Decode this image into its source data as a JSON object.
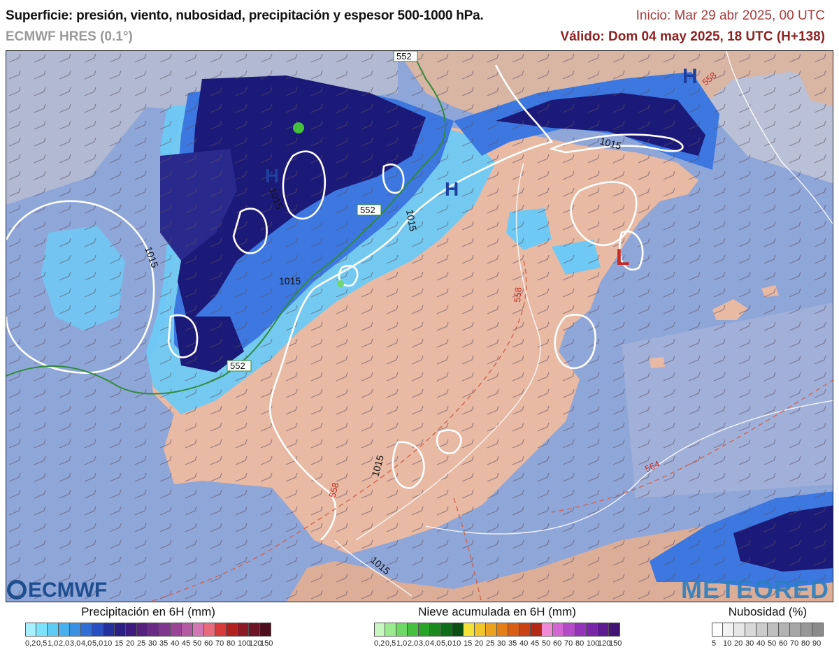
{
  "header": {
    "title": "Superficie: presión, viento, nubosidad, precipitación y espesor 500-1000 hPa.",
    "model": "ECMWF HRES (0.1°)",
    "init": "Inicio: Mar 29 abr 2025, 00 UTC",
    "valid": "Válido: Dom 04 may 2025, 18 UTC (H+138)"
  },
  "map": {
    "pressure_centers": [
      {
        "letter": "H",
        "kind": "high"
      },
      {
        "letter": "H",
        "kind": "high"
      },
      {
        "letter": "H",
        "kind": "high"
      },
      {
        "letter": "L",
        "kind": "low"
      }
    ],
    "isobar_labels": [
      "1015",
      "1015",
      "1015",
      "1015",
      "1015",
      "1015",
      "1015"
    ],
    "thickness_labels": [
      "552",
      "552",
      "552",
      "558",
      "558",
      "564",
      "558"
    ],
    "colors": {
      "sea": "#8fa6d9",
      "land": "#e8b9a3",
      "precip_dark": "#1c1a78",
      "precip_mid": "#3c78e0",
      "precip_light": "#6ec9f5",
      "isobar": "#ffffff",
      "thickness_552": "#2f8c3a",
      "thickness_dashed": "#d0604a"
    }
  },
  "watermarks": {
    "left": "ECMWF",
    "right": "METEORED"
  },
  "legends": {
    "precip": {
      "title": "Precipitación en 6H (mm)",
      "ticks": [
        "0,2",
        "0,5",
        "1,0",
        "2,0",
        "3,0",
        "4,0",
        "5,0",
        "10",
        "15",
        "20",
        "25",
        "30",
        "35",
        "40",
        "45",
        "50",
        "60",
        "70",
        "80",
        "100",
        "120",
        "150"
      ],
      "colors": [
        "#a6f0ff",
        "#7de2fb",
        "#5ecbf5",
        "#49b0ee",
        "#3a91e4",
        "#2f6fd6",
        "#2a4ec4",
        "#23309e",
        "#2b1f86",
        "#3e1a80",
        "#55207e",
        "#6a2a86",
        "#80368e",
        "#9a4496",
        "#b45aa2",
        "#d276b4",
        "#e76b7c",
        "#d63a3a",
        "#b32020",
        "#8c1a26",
        "#6b1428",
        "#4d0e1e"
      ]
    },
    "snow": {
      "title": "Nieve acumulada en 6H (mm)",
      "ticks": [
        "0,2",
        "0,5",
        "1,0",
        "2,0",
        "3,0",
        "4,0",
        "5,0",
        "10",
        "15",
        "20",
        "25",
        "30",
        "35",
        "40",
        "45",
        "50",
        "60",
        "70",
        "80",
        "100",
        "120",
        "150"
      ],
      "colors": [
        "#c8f7c2",
        "#9bea90",
        "#6fd765",
        "#46c13e",
        "#2aa426",
        "#1a8a1f",
        "#0f6e1a",
        "#0b4f13",
        "#f2e23a",
        "#f0c52a",
        "#eca21e",
        "#e47f18",
        "#d85e14",
        "#c84214",
        "#b42a16",
        "#f08ad6",
        "#d466d4",
        "#b54bc8",
        "#9434b8",
        "#7a25a8",
        "#5e1a90",
        "#421474"
      ]
    },
    "cloud": {
      "title": "Nubosidad (%)",
      "ticks": [
        "5",
        "10",
        "20",
        "30",
        "40",
        "50",
        "60",
        "70",
        "80",
        "90"
      ],
      "colors": [
        "#ffffff",
        "#f2f2f2",
        "#e6e6e6",
        "#d9d9d9",
        "#cccccc",
        "#bfbfbf",
        "#b2b2b2",
        "#a5a5a5",
        "#989898",
        "#8b8b8b"
      ]
    }
  }
}
